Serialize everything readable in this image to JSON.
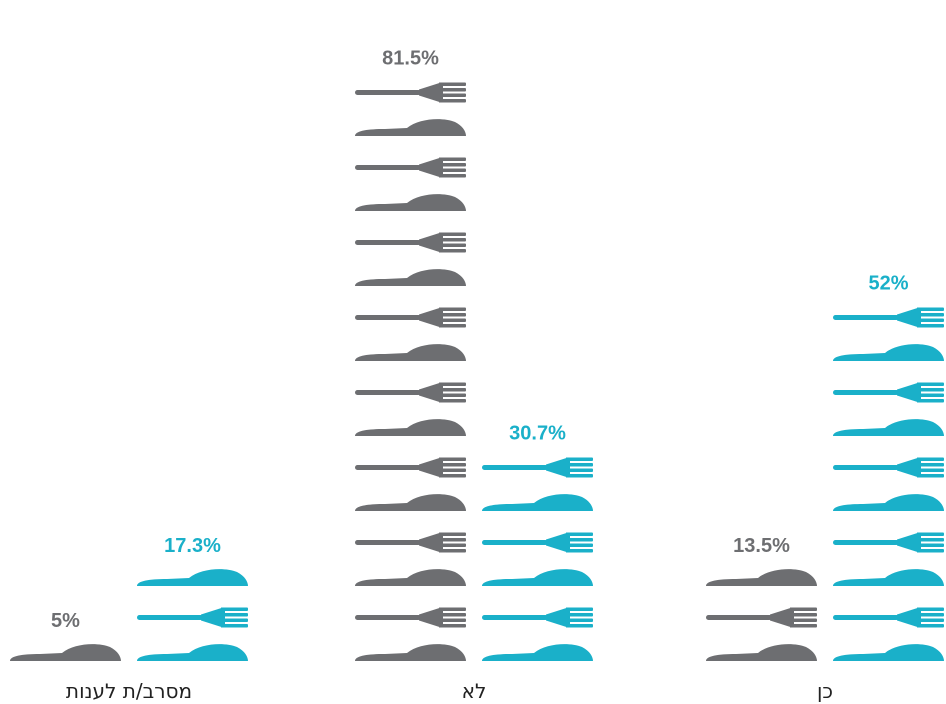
{
  "chart_data": {
    "type": "bar",
    "style": "pictograph",
    "icon_names": [
      "knife-icon",
      "fork-icon"
    ],
    "categories": [
      "מסרב/ת לענות",
      "לא",
      "כן"
    ],
    "series": [
      {
        "values": [
          5,
          81.5,
          13.5
        ],
        "labels": [
          "5%",
          "81.5%",
          "13.5%"
        ],
        "color": "#6d6e71"
      },
      {
        "values": [
          17.3,
          30.7,
          52
        ],
        "labels": [
          "17.3%",
          "30.7%",
          "52%"
        ],
        "color": "#1ab0c9"
      }
    ],
    "ylim": [
      0,
      100
    ],
    "grid": false,
    "legend": "none"
  }
}
